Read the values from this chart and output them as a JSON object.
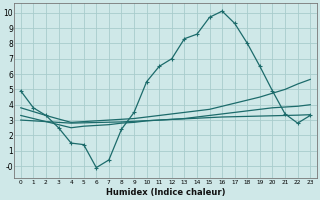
{
  "xlabel": "Humidex (Indice chaleur)",
  "xlim": [
    -0.5,
    23.5
  ],
  "ylim": [
    -0.8,
    10.6
  ],
  "xticks": [
    0,
    1,
    2,
    3,
    4,
    5,
    6,
    7,
    8,
    9,
    10,
    11,
    12,
    13,
    14,
    15,
    16,
    17,
    18,
    19,
    20,
    21,
    22,
    23
  ],
  "yticks": [
    0,
    1,
    2,
    3,
    4,
    5,
    6,
    7,
    8,
    9,
    10
  ],
  "ytick_labels": [
    "-0",
    "1",
    "2",
    "3",
    "4",
    "5",
    "6",
    "7",
    "8",
    "9",
    "10"
  ],
  "background_color": "#cfe8e8",
  "grid_color": "#a8cccc",
  "line_color": "#1c6b6b",
  "line1_x": [
    0,
    1,
    2,
    3,
    4,
    5,
    6,
    7,
    8,
    9,
    10,
    11,
    12,
    13,
    14,
    15,
    16,
    17,
    18,
    19,
    20,
    21,
    22,
    23
  ],
  "line1_y": [
    4.9,
    3.8,
    3.3,
    2.5,
    1.5,
    1.4,
    -0.1,
    0.4,
    2.4,
    3.5,
    5.5,
    6.5,
    7.0,
    8.3,
    8.6,
    9.7,
    10.1,
    9.3,
    8.0,
    6.5,
    4.9,
    3.4,
    2.8,
    3.3
  ],
  "line2_x": [
    0,
    23
  ],
  "line2_y": [
    3.8,
    6.5
  ],
  "line3_x": [
    0,
    23
  ],
  "line3_y": [
    3.3,
    4.8
  ],
  "line4_x": [
    0,
    23
  ],
  "line4_y": [
    3.0,
    3.4
  ],
  "line2b_x": [
    0,
    1,
    2,
    3,
    4,
    5,
    6,
    7,
    8,
    9,
    10,
    11,
    12,
    13,
    14,
    15,
    16,
    17,
    18,
    19,
    20,
    21,
    22,
    23
  ],
  "line2b_y": [
    3.8,
    3.55,
    3.3,
    3.07,
    2.85,
    2.9,
    2.95,
    3.0,
    3.05,
    3.1,
    3.2,
    3.3,
    3.4,
    3.5,
    3.6,
    3.7,
    3.9,
    4.1,
    4.3,
    4.5,
    4.75,
    5.0,
    5.35,
    5.65
  ],
  "line3b_x": [
    0,
    1,
    2,
    3,
    4,
    5,
    6,
    7,
    8,
    9,
    10,
    11,
    12,
    13,
    14,
    15,
    16,
    17,
    18,
    19,
    20,
    21,
    22,
    23
  ],
  "line3b_y": [
    3.3,
    3.1,
    2.9,
    2.7,
    2.5,
    2.6,
    2.65,
    2.7,
    2.8,
    2.85,
    2.95,
    3.0,
    3.05,
    3.1,
    3.2,
    3.3,
    3.4,
    3.5,
    3.6,
    3.7,
    3.8,
    3.85,
    3.9,
    4.0
  ],
  "line4b_x": [
    0,
    1,
    2,
    3,
    4,
    5,
    6,
    7,
    8,
    9,
    10,
    11,
    12,
    13,
    14,
    15,
    16,
    17,
    18,
    19,
    20,
    21,
    22,
    23
  ],
  "line4b_y": [
    3.0,
    2.95,
    2.9,
    2.85,
    2.8,
    2.82,
    2.84,
    2.86,
    2.88,
    2.92,
    2.96,
    3.0,
    3.04,
    3.08,
    3.12,
    3.16,
    3.2,
    3.22,
    3.24,
    3.26,
    3.28,
    3.3,
    3.32,
    3.35
  ]
}
